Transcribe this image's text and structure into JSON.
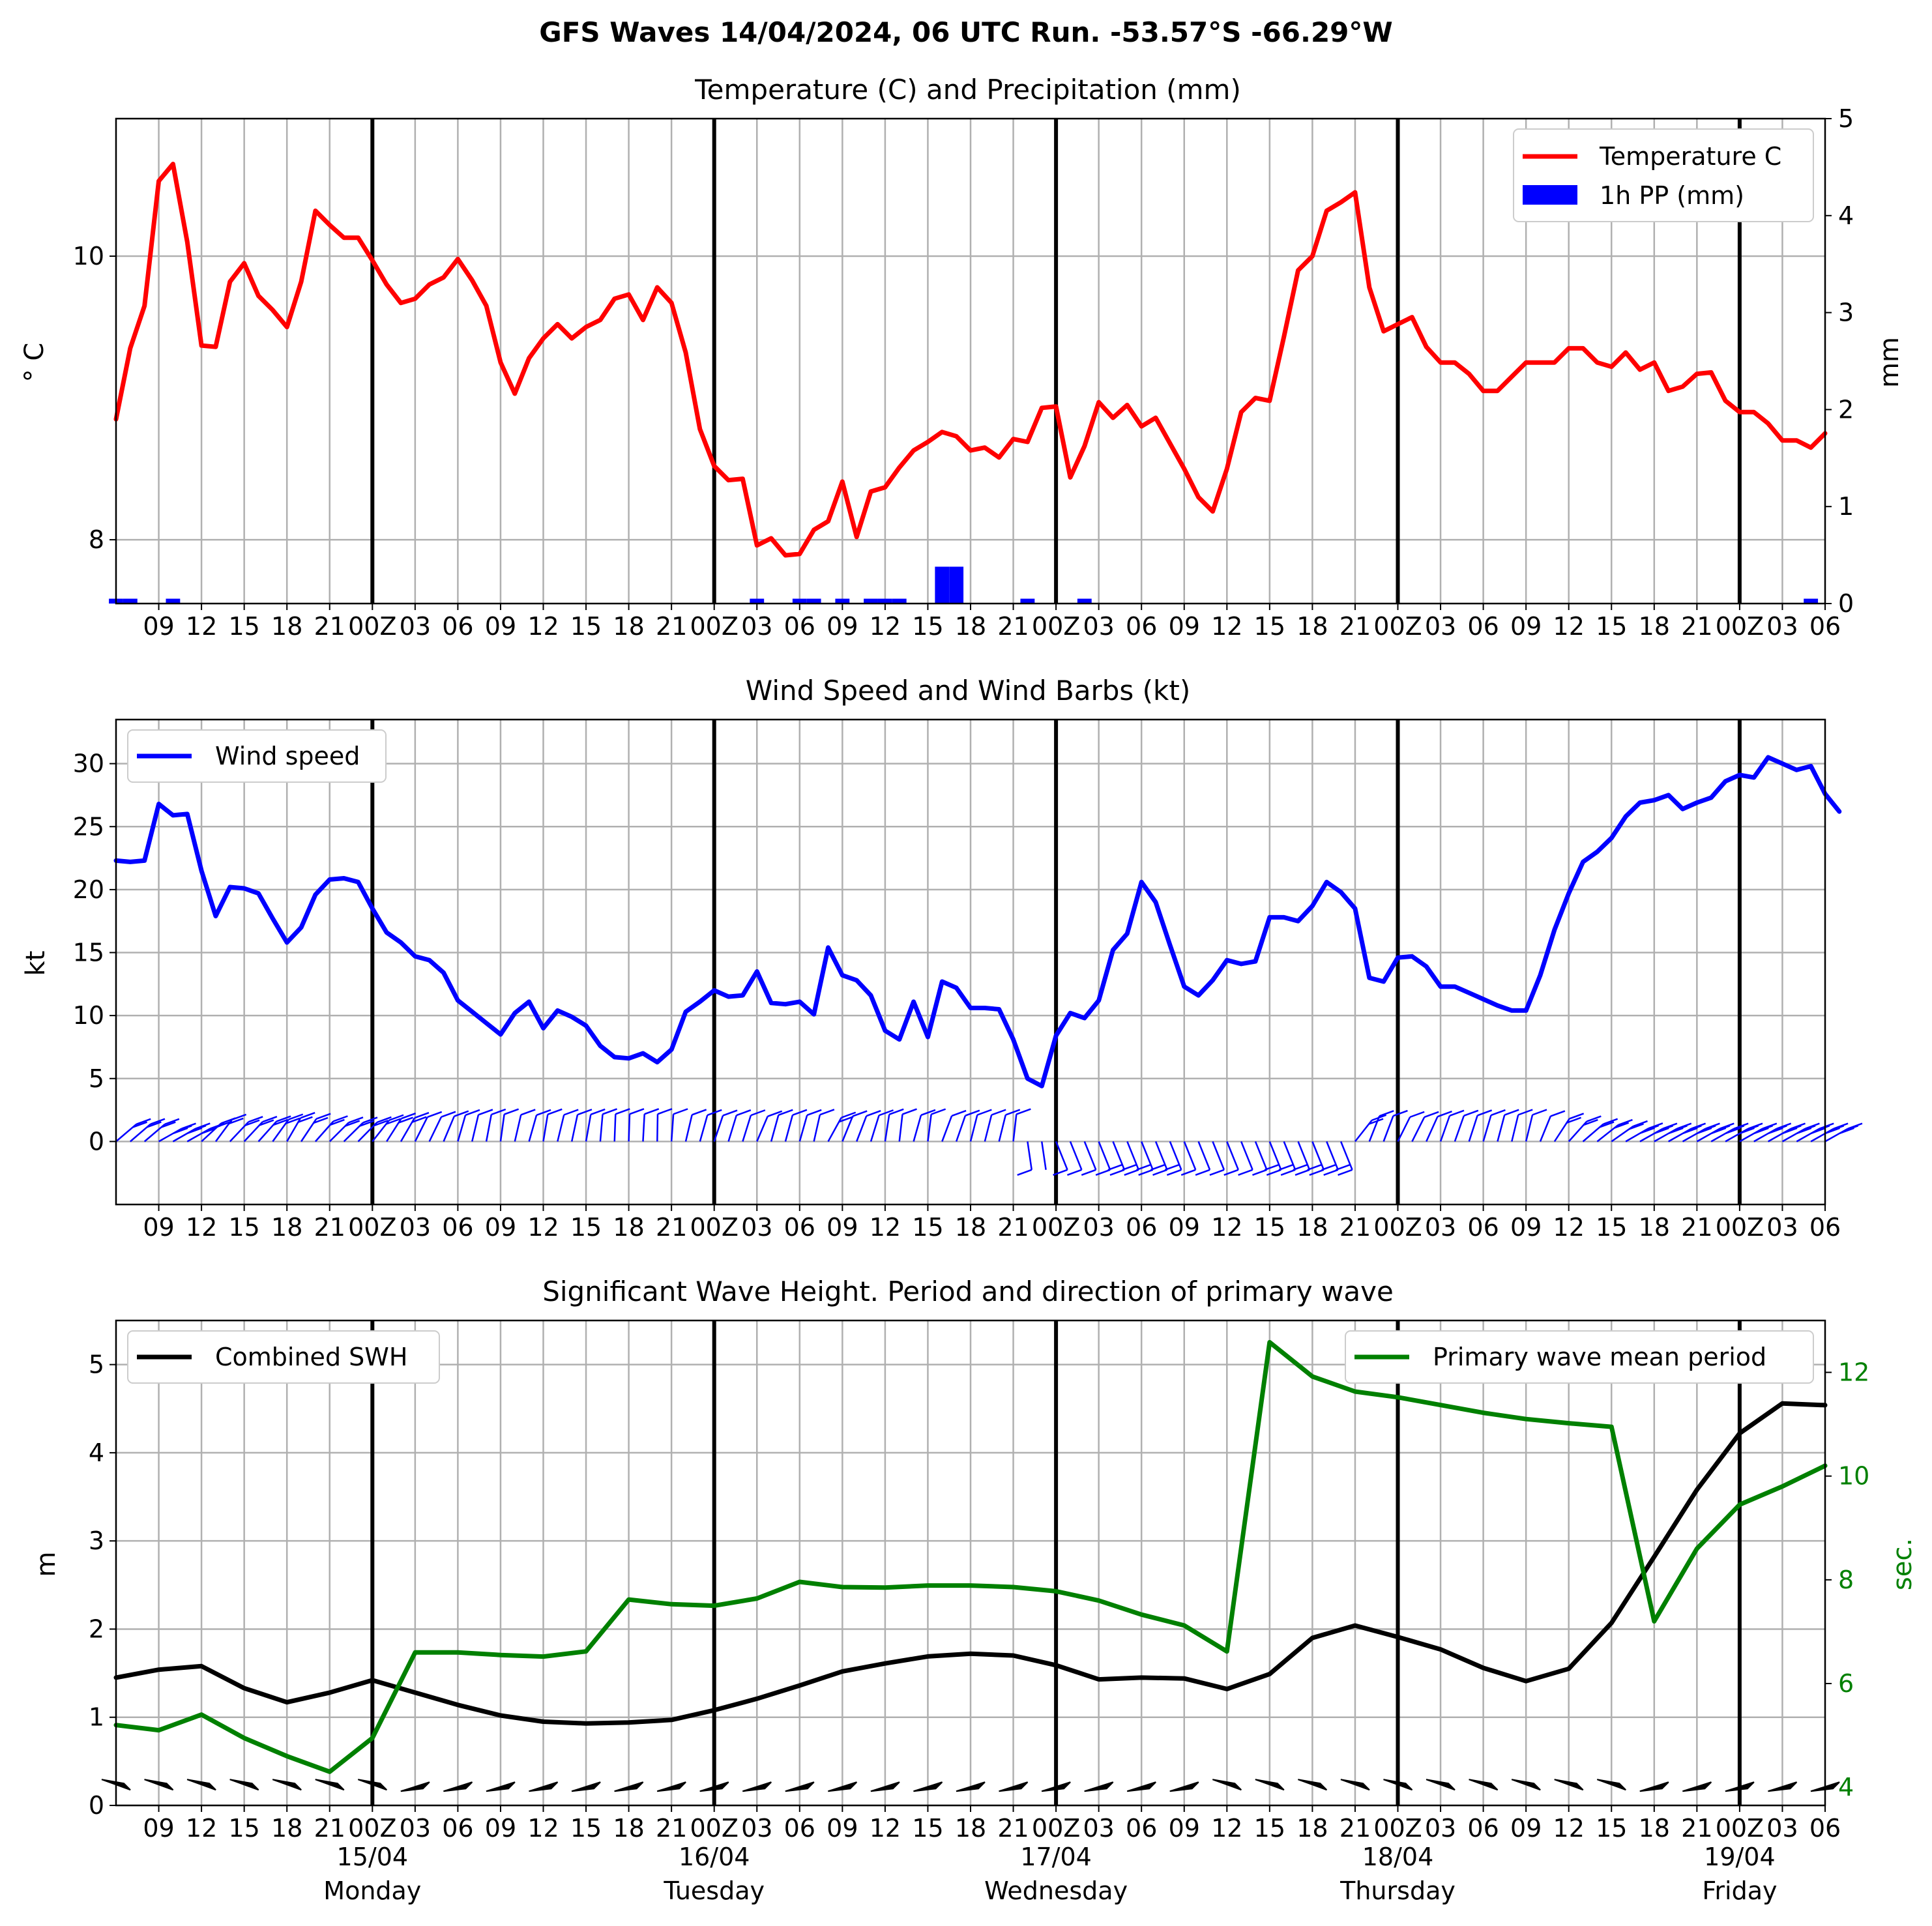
{
  "page_title": "GFS Waves 14/04/2024, 06 UTC Run. -53.57°S -66.29°W",
  "colors": {
    "temperature": "#ff0000",
    "precip": "#0000ff",
    "wind": "#0000ff",
    "swh": "#000000",
    "period": "#008000",
    "grid": "#b0b0b0",
    "day_line": "#000000"
  },
  "x_axis": {
    "start": "14/04/2024 06 UTC",
    "end": "19/04/2024 06 UTC",
    "hour_labels": [
      "09",
      "12",
      "15",
      "18",
      "21",
      "00Z",
      "03",
      "06",
      "09",
      "12",
      "15",
      "18",
      "21",
      "00Z",
      "03",
      "06",
      "09",
      "12",
      "15",
      "18",
      "21",
      "00Z",
      "03",
      "06",
      "09",
      "12",
      "15",
      "18",
      "21",
      "00Z",
      "03",
      "06",
      "09",
      "12",
      "15",
      "18",
      "21",
      "00Z",
      "03",
      "06"
    ],
    "day_labels": [
      {
        "date": "15/04",
        "day": "Monday"
      },
      {
        "date": "16/04",
        "day": "Tuesday"
      },
      {
        "date": "17/04",
        "day": "Wednesday"
      },
      {
        "date": "18/04",
        "day": "Thursday"
      },
      {
        "date": "19/04",
        "day": "Friday"
      }
    ]
  },
  "chart_data": [
    {
      "type": "line",
      "title": "Temperature (C) and Precipitation (mm)",
      "ylabel": "$^\\circ$C",
      "ylabel_display": "° C",
      "ylabel_right": "mm",
      "ylim": [
        7.55,
        10.97
      ],
      "y_ticks": [
        8,
        10
      ],
      "y2lim": [
        0,
        5
      ],
      "y2_ticks": [
        0,
        1,
        2,
        3,
        4,
        5
      ],
      "legend": {
        "position": "top-right",
        "items": [
          "Temperature C",
          "1h PP (mm)"
        ]
      },
      "grid": true,
      "series": [
        {
          "name": "Temperature C",
          "x_step_hours": 1,
          "x_start_hours": 0,
          "values": [
            8.85,
            9.35,
            9.65,
            10.53,
            10.65,
            10.1,
            9.37,
            9.36,
            9.82,
            9.95,
            9.72,
            9.62,
            9.5,
            9.82,
            10.32,
            10.22,
            10.13,
            10.13,
            9.97,
            9.8,
            9.67,
            9.7,
            9.8,
            9.85,
            9.98,
            9.83,
            9.65,
            9.25,
            9.03,
            9.28,
            9.42,
            9.52,
            9.42,
            9.5,
            9.55,
            9.7,
            9.73,
            9.55,
            9.78,
            9.67,
            9.32,
            8.78,
            8.52,
            8.42,
            8.43,
            7.96,
            8.01,
            7.89,
            7.9,
            8.07,
            8.13,
            8.41,
            8.02,
            8.34,
            8.37,
            8.51,
            8.63,
            8.69,
            8.76,
            8.73,
            8.63,
            8.65,
            8.58,
            8.71,
            8.69,
            8.93,
            8.94,
            8.44,
            8.66,
            8.97,
            8.86,
            8.95,
            8.8,
            8.86,
            8.68,
            8.5,
            8.3,
            8.2,
            8.5,
            8.9,
            9.0,
            8.98,
            9.43,
            9.9,
            10.0,
            10.32,
            10.38,
            10.45,
            9.78,
            9.47,
            9.52,
            9.57,
            9.36,
            9.25,
            9.25,
            9.17,
            9.05,
            9.05,
            9.15,
            9.25,
            9.25,
            9.25,
            9.35,
            9.35,
            9.25,
            9.22,
            9.32,
            9.2,
            9.25,
            9.05,
            9.08,
            9.17,
            9.18,
            8.98,
            8.9,
            8.9,
            8.82,
            8.7,
            8.7,
            8.65,
            8.75
          ]
        },
        {
          "name": "1h PP (mm)",
          "type": "bar",
          "x_hours": [
            0,
            1,
            4,
            45,
            48,
            49,
            51,
            53,
            54,
            55,
            58,
            59,
            64,
            68,
            119
          ],
          "values": [
            0.05,
            0.05,
            0.05,
            0.05,
            0.05,
            0.05,
            0.05,
            0.05,
            0.05,
            0.05,
            0.38,
            0.38,
            0.05,
            0.05,
            0.05
          ]
        }
      ]
    },
    {
      "type": "line",
      "title": "Wind Speed and Wind Barbs (kt)",
      "ylabel": "kt",
      "ylim": [
        -5,
        33.5
      ],
      "y_ticks": [
        0,
        5,
        10,
        15,
        20,
        25,
        30
      ],
      "legend": {
        "position": "top-left",
        "items": [
          "Wind speed"
        ]
      },
      "grid": true,
      "series": [
        {
          "name": "Wind speed",
          "x_step_hours": 1,
          "x_start_hours": 0,
          "values": [
            22.3,
            22.2,
            22.3,
            26.8,
            25.9,
            26.0,
            21.5,
            17.9,
            20.2,
            20.1,
            19.7,
            17.7,
            15.8,
            17.0,
            19.6,
            20.8,
            20.9,
            20.6,
            18.5,
            16.6,
            15.8,
            14.7,
            14.4,
            13.4,
            11.2,
            10.3,
            9.4,
            8.5,
            10.2,
            11.1,
            9.0,
            10.4,
            9.9,
            9.2,
            7.6,
            6.7,
            6.6,
            7.0,
            6.3,
            7.3,
            10.3,
            11.1,
            12.0,
            11.5,
            11.6,
            13.5,
            11.0,
            10.9,
            11.1,
            10.1,
            15.4,
            13.2,
            12.8,
            11.6,
            8.8,
            8.1,
            11.1,
            8.3,
            12.7,
            12.2,
            10.6,
            10.6,
            10.5,
            8.1,
            5.0,
            4.4,
            8.4,
            10.2,
            9.8,
            11.2,
            15.2,
            16.5,
            20.6,
            19.0,
            15.6,
            12.3,
            11.6,
            12.8,
            14.4,
            14.1,
            14.3,
            17.8,
            17.8,
            17.5,
            18.7,
            20.6,
            19.8,
            18.5,
            13.0,
            12.7,
            14.6,
            14.7,
            13.9,
            12.3,
            12.3,
            11.8,
            11.3,
            10.8,
            10.4,
            10.4,
            13.2,
            16.8,
            19.7,
            22.2,
            23.0,
            24.1,
            25.8,
            26.9,
            27.1,
            27.5,
            26.4,
            26.9,
            27.3,
            28.6,
            29.1,
            28.9,
            30.5,
            30.0,
            29.5,
            29.8,
            27.6,
            26.2
          ]
        }
      ],
      "barbs": {
        "direction_segments": [
          {
            "from_hour": 0,
            "to_hour": 63,
            "direction": "westerly, barbs above zero line"
          },
          {
            "from_hour": 64,
            "to_hour": 86,
            "direction": "barbs below zero line"
          },
          {
            "from_hour": 87,
            "to_hour": 120,
            "direction": "westerly, barbs above zero line"
          }
        ]
      }
    },
    {
      "type": "line",
      "title": "Significant Wave Height. Period and direction of primary wave",
      "ylabel": "m",
      "ylabel_right": "sec.",
      "ylim": [
        0,
        5.5
      ],
      "y_ticks": [
        0,
        1,
        2,
        3,
        4,
        5
      ],
      "y2lim": [
        3.65,
        13.0
      ],
      "y2_ticks": [
        4,
        6,
        8,
        10,
        12
      ],
      "legend": [
        {
          "position": "top-left",
          "items": [
            "Combined SWH"
          ]
        },
        {
          "position": "top-right",
          "items": [
            "Primary wave mean period"
          ]
        }
      ],
      "grid": true,
      "series": [
        {
          "name": "Combined SWH",
          "x_step_hours": 3,
          "x_start_hours": 0,
          "values": [
            1.45,
            1.54,
            1.58,
            1.33,
            1.17,
            1.28,
            1.42,
            1.28,
            1.14,
            1.02,
            0.95,
            0.93,
            0.94,
            0.97,
            1.08,
            1.21,
            1.36,
            1.52,
            1.61,
            1.69,
            1.72,
            1.7,
            1.59,
            1.43,
            1.45,
            1.44,
            1.32,
            1.49,
            1.9,
            2.04,
            1.91,
            1.77,
            1.56,
            1.41,
            1.55,
            2.07,
            2.82,
            3.58,
            4.22,
            4.56,
            4.54
          ]
        },
        {
          "name": "Primary wave mean period",
          "x_step_hours": 3,
          "x_start_hours": 0,
          "values": [
            5.2,
            5.1,
            5.4,
            4.95,
            4.6,
            4.3,
            4.95,
            6.6,
            6.6,
            6.55,
            6.52,
            6.62,
            7.62,
            7.53,
            7.5,
            7.64,
            7.96,
            7.86,
            7.85,
            7.89,
            7.89,
            7.86,
            7.78,
            7.6,
            7.33,
            7.12,
            6.62,
            12.58,
            11.92,
            11.63,
            11.52,
            11.37,
            11.22,
            11.1,
            11.02,
            10.95,
            7.2,
            8.6,
            9.45,
            9.8,
            10.2
          ]
        }
      ],
      "direction_arrows": "primary wave direction arrows along the bottom every 3 hours"
    }
  ]
}
